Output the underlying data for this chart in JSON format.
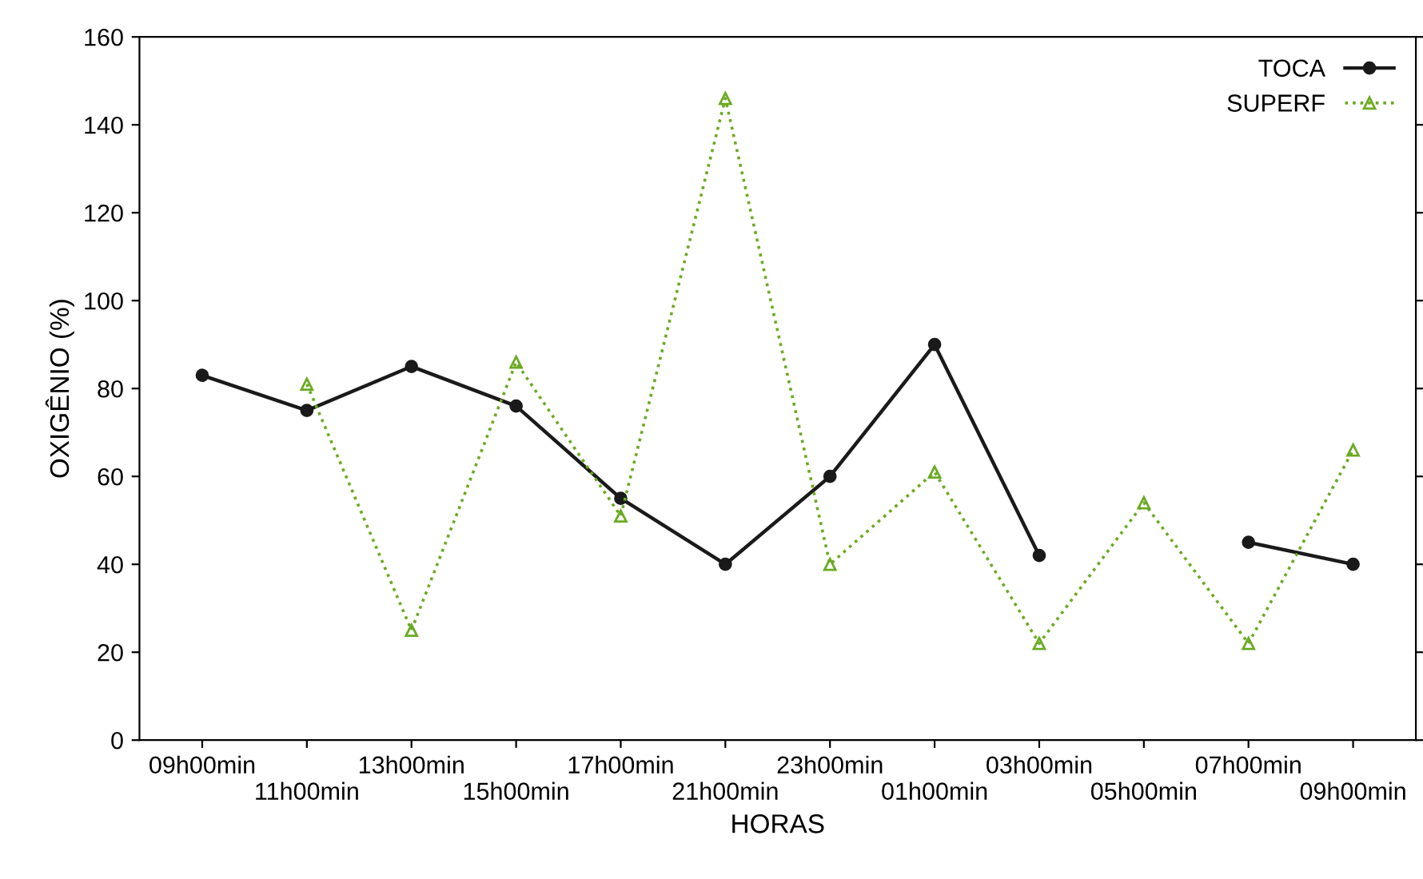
{
  "chart_data": {
    "type": "line",
    "xlabel": "HORAS",
    "ylabel": "OXIGÊNIO (%)",
    "categories": [
      "09h00min",
      "11h00min",
      "13h00min",
      "15h00min",
      "17h00min",
      "21h00min",
      "23h00min",
      "01h00min",
      "03h00min",
      "05h00min",
      "07h00min",
      "09h00min"
    ],
    "series": [
      {
        "name": "TOCA",
        "color": "#1a1a1a",
        "marker": "circle",
        "line_style": "solid",
        "values": [
          83,
          75,
          85,
          76,
          55,
          40,
          60,
          90,
          42,
          null,
          45,
          40
        ]
      },
      {
        "name": "SUPERF",
        "color": "#6aaa22",
        "marker": "triangle",
        "line_style": "dotted",
        "values": [
          null,
          81,
          25,
          86,
          51,
          146,
          40,
          61,
          22,
          54,
          22,
          66
        ]
      }
    ],
    "ylim": [
      0,
      160
    ],
    "yticks": [
      0,
      20,
      40,
      60,
      80,
      100,
      120,
      140,
      160
    ],
    "grid": false,
    "legend": "top right"
  }
}
